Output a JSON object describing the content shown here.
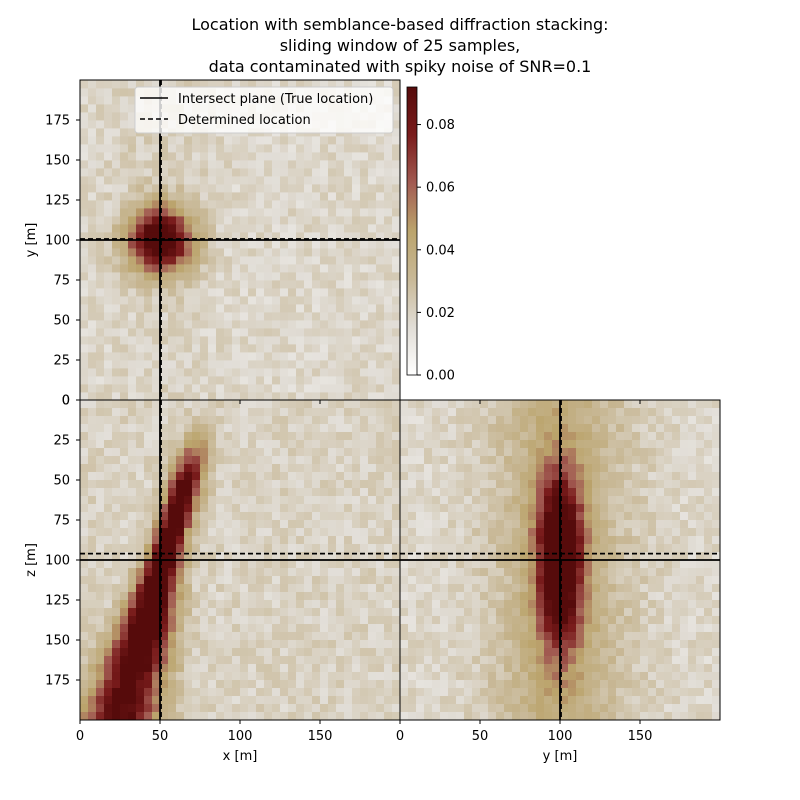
{
  "title": {
    "line1": "Location with semblance-based diffraction stacking:",
    "line2": "sliding window of 25 samples,",
    "line3": "data contaminated with spiky noise of SNR=0.1"
  },
  "chart_data": [
    {
      "panel": "top (x–y slice)",
      "type": "heatmap",
      "xlabel": "",
      "ylabel": "y [m]",
      "xlim": [
        0,
        200
      ],
      "ylim": [
        0,
        200
      ],
      "y_ticks": [
        0,
        25,
        50,
        75,
        100,
        125,
        150,
        175
      ],
      "true_location": {
        "x": 50,
        "y": 100
      },
      "determined_location": {
        "x": 50,
        "y": 100
      },
      "peak": {
        "x": 50,
        "y": 100,
        "value": 0.09
      }
    },
    {
      "panel": "bottom-left (x–z slice)",
      "type": "heatmap",
      "xlabel": "x [m]",
      "ylabel": "z [m]",
      "xlim": [
        0,
        200
      ],
      "zlim": [
        0,
        200
      ],
      "x_ticks": [
        0,
        50,
        100,
        150
      ],
      "z_ticks": [
        0,
        25,
        50,
        75,
        100,
        125,
        150,
        175
      ],
      "true_location": {
        "x": 50,
        "z": 100
      },
      "determined_location": {
        "x": 50,
        "z": 96
      },
      "peak": {
        "x": 50,
        "z": 110,
        "value": 0.09
      }
    },
    {
      "panel": "bottom-right (y–z slice)",
      "type": "heatmap",
      "xlabel": "y [m]",
      "ylabel": "",
      "xlim": [
        0,
        200
      ],
      "zlim": [
        0,
        200
      ],
      "x_ticks": [
        0,
        50,
        100,
        150
      ],
      "true_location": {
        "y": 100,
        "z": 100
      },
      "determined_location": {
        "y": 100,
        "z": 96
      },
      "peak": {
        "y": 100,
        "z": 100,
        "value": 0.09
      }
    }
  ],
  "legend": {
    "placement": "upper-right of top panel",
    "entries": [
      {
        "label": "Intersect plane (True location)",
        "style": "solid"
      },
      {
        "label": "Determined location",
        "style": "dashed"
      }
    ]
  },
  "colorbar": {
    "min": 0.0,
    "max": 0.092,
    "ticks": [
      "0.00",
      "0.02",
      "0.04",
      "0.06",
      "0.08"
    ],
    "colormap": [
      "#ffffff",
      "#e1ddd6",
      "#c8b896",
      "#bba46c",
      "#a25b52",
      "#7a1c1c",
      "#560b0b"
    ]
  }
}
